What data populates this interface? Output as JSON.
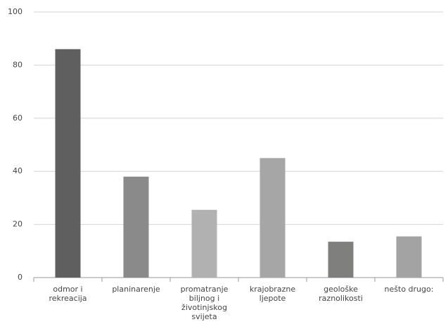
{
  "chart_data": {
    "type": "bar",
    "categories": [
      "odmor i rekreacija",
      "planinarenje",
      "promatranje biljnog i životinjskog svijeta",
      "krajobrazne ljepote",
      "geološke raznolikosti",
      "nešto drugo:"
    ],
    "values": [
      86,
      38,
      25.5,
      45,
      13.5,
      15.5
    ],
    "colors": [
      "#5f5f5f",
      "#8b8a8a",
      "#b1b1b1",
      "#a6a6a6",
      "#7f7f7d",
      "#a3a3a3"
    ],
    "ylim": [
      0,
      100
    ],
    "yticks": [
      0,
      20,
      40,
      60,
      80,
      100
    ],
    "grid": true
  }
}
